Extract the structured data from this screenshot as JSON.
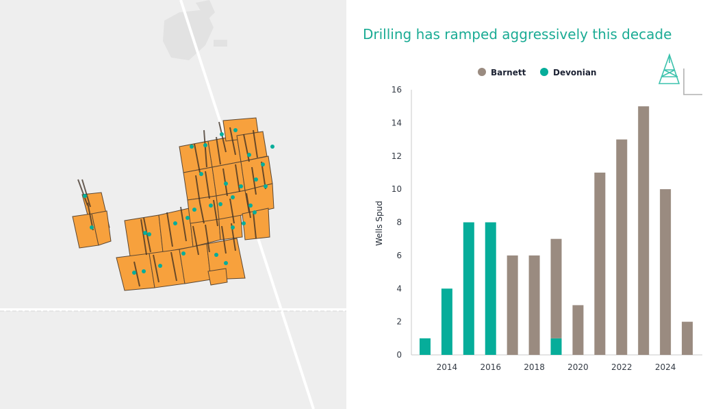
{
  "colors": {
    "barnett": "#9a8b80",
    "devonian": "#06ad9a",
    "title": "#1aab94",
    "lease": "#f7a13d",
    "map_background": "#eeeeee",
    "logo": "#3cc2ad"
  },
  "map": {
    "icon": "lease-map-image"
  },
  "logo": {
    "icon": "drilling-rig-logo-icon"
  },
  "chart_data": {
    "type": "bar",
    "stacked": true,
    "title": "Drilling has ramped aggressively this decade",
    "xlabel": "",
    "ylabel": "Wells Spud",
    "ylim": [
      0,
      16
    ],
    "yticks": [
      0,
      2,
      4,
      6,
      8,
      10,
      12,
      14,
      16
    ],
    "x": [
      2013,
      2014,
      2015,
      2016,
      2017,
      2018,
      2019,
      2020,
      2021,
      2022,
      2023,
      2024,
      2025
    ],
    "xticks": [
      "2014",
      "2016",
      "2018",
      "2020",
      "2022",
      "2024"
    ],
    "legend_position": "top",
    "grid": false,
    "series": [
      {
        "name": "Barnett",
        "color": "#9a8b80",
        "values": [
          0,
          0,
          0,
          0,
          6,
          6,
          6,
          3,
          11,
          13,
          15,
          10,
          2
        ]
      },
      {
        "name": "Devonian",
        "color": "#06ad9a",
        "values": [
          1,
          4,
          8,
          8,
          0,
          0,
          1,
          0,
          0,
          0,
          0,
          0,
          0
        ]
      }
    ]
  }
}
